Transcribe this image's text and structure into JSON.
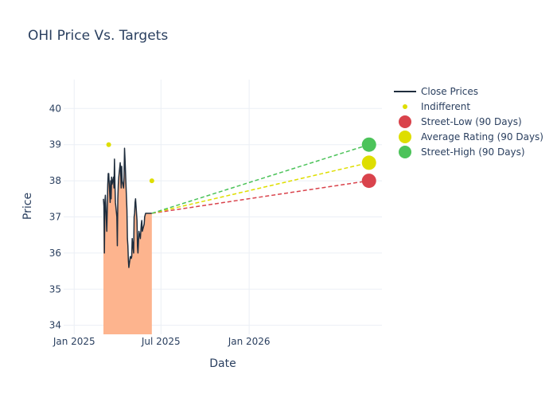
{
  "chart_data": {
    "type": "line",
    "title": "OHI Price Vs. Targets",
    "xlabel": "Date",
    "ylabel": "Price",
    "x_range": [
      "2024-12-10",
      "2026-10-05"
    ],
    "ylim": [
      33.75,
      40.8
    ],
    "x_ticks": [
      {
        "date": "2025-01-01",
        "label": "Jan 2025"
      },
      {
        "date": "2025-07-01",
        "label": "Jul 2025"
      },
      {
        "date": "2026-01-01",
        "label": "Jan 2026"
      }
    ],
    "y_ticks": [
      34,
      35,
      36,
      37,
      38,
      39,
      40
    ],
    "grid": true,
    "legend_position": "top-right",
    "colors": {
      "close": "#1f2d3d",
      "fill": "#fdb48e",
      "indifferent": "#dede00",
      "street_low": "#d9434c",
      "average": "#dede00",
      "street_high": "#4cc35a",
      "grid": "#ebeff5"
    },
    "close_prices": {
      "name": "Close Prices",
      "x": [
        "2025-03-03",
        "2025-03-04",
        "2025-03-05",
        "2025-03-06",
        "2025-03-07",
        "2025-03-10",
        "2025-03-11",
        "2025-03-12",
        "2025-03-13",
        "2025-03-14",
        "2025-03-17",
        "2025-03-18",
        "2025-03-19",
        "2025-03-20",
        "2025-03-21",
        "2025-03-24",
        "2025-03-25",
        "2025-03-26",
        "2025-03-27",
        "2025-03-28",
        "2025-03-31",
        "2025-04-01",
        "2025-04-02",
        "2025-04-03",
        "2025-04-04",
        "2025-04-07",
        "2025-04-08",
        "2025-04-09",
        "2025-04-10",
        "2025-04-11",
        "2025-04-14",
        "2025-04-15",
        "2025-04-16",
        "2025-04-17",
        "2025-04-21",
        "2025-04-22",
        "2025-04-23",
        "2025-04-24",
        "2025-04-25",
        "2025-04-28",
        "2025-04-29",
        "2025-04-30",
        "2025-05-01",
        "2025-05-02",
        "2025-05-05",
        "2025-05-06",
        "2025-05-07",
        "2025-05-08",
        "2025-05-09",
        "2025-05-12",
        "2025-05-13",
        "2025-05-14",
        "2025-05-15",
        "2025-05-16",
        "2025-05-19",
        "2025-05-20",
        "2025-05-21",
        "2025-05-22",
        "2025-05-23",
        "2025-05-27",
        "2025-05-28",
        "2025-05-29",
        "2025-05-30",
        "2025-06-02",
        "2025-06-03",
        "2025-06-04",
        "2025-06-05",
        "2025-06-06",
        "2025-06-09",
        "2025-06-10",
        "2025-06-11",
        "2025-06-12"
      ],
      "y": [
        37.5,
        37.3,
        36.0,
        37.4,
        37.6,
        36.6,
        37.2,
        37.9,
        38.2,
        38.2,
        37.4,
        38.0,
        37.5,
        38.1,
        37.9,
        38.1,
        37.8,
        38.6,
        37.9,
        37.4,
        37.0,
        36.2,
        37.5,
        37.9,
        38.1,
        38.5,
        38.2,
        37.8,
        38.4,
        38.0,
        37.8,
        38.1,
        38.9,
        38.6,
        37.2,
        36.4,
        36.2,
        35.8,
        35.6,
        35.9,
        35.9,
        35.85,
        35.9,
        36.4,
        36.0,
        37.0,
        37.1,
        37.4,
        37.5,
        36.9,
        36.2,
        36.0,
        36.3,
        36.6,
        36.4,
        36.6,
        36.8,
        36.9,
        36.6,
        36.8,
        37.0,
        37.05,
        37.1,
        37.1,
        37.1,
        37.1,
        37.1,
        37.1,
        37.1,
        37.1,
        37.1,
        37.1
      ]
    },
    "indifferent": {
      "name": "Indifferent",
      "points": [
        {
          "x": "2025-03-14",
          "y": 39
        },
        {
          "x": "2025-06-12",
          "y": 38
        }
      ]
    },
    "targets": {
      "start": {
        "x": "2025-06-12",
        "y": 37.1
      },
      "end_date": "2026-09-08",
      "street_low": {
        "name": "Street-Low (90 Days)",
        "y": 38
      },
      "average": {
        "name": "Average Rating (90 Days)",
        "y": 38.5
      },
      "street_high": {
        "name": "Street-High (90 Days)",
        "y": 39
      }
    },
    "legend": [
      "Close Prices",
      "Indifferent",
      "Street-Low (90 Days)",
      "Average Rating (90 Days)",
      "Street-High (90 Days)"
    ]
  }
}
